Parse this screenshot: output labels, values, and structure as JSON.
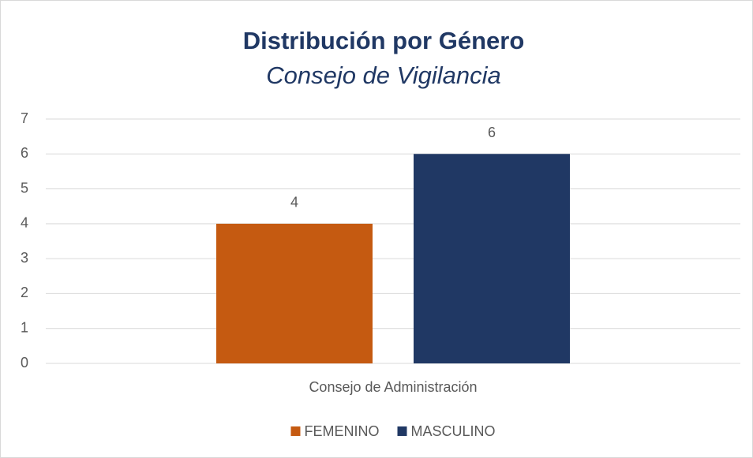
{
  "chart_data": {
    "type": "bar",
    "title": "Distribución por Género",
    "subtitle": "Consejo de Vigilancia",
    "categories": [
      "Consejo de Administración"
    ],
    "series": [
      {
        "name": "FEMENINO",
        "color": "#c55a11",
        "values": [
          4
        ]
      },
      {
        "name": "MASCULINO",
        "color": "#203864",
        "values": [
          6
        ]
      }
    ],
    "ylim": [
      0,
      7
    ],
    "yticks": [
      0,
      1,
      2,
      3,
      4,
      5,
      6,
      7
    ],
    "grid": true,
    "legend": "bottom"
  }
}
